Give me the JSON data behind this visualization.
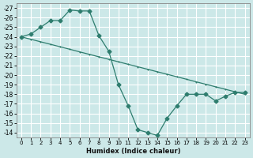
{
  "xlabel": "Humidex (Indice chaleur)",
  "bg_color": "#cce8e8",
  "grid_color": "#ffffff",
  "line_color": "#2e7d6e",
  "xlim": [
    -0.5,
    23.5
  ],
  "ylim": [
    -27.5,
    -13.5
  ],
  "xticks": [
    0,
    1,
    2,
    3,
    4,
    5,
    6,
    7,
    8,
    9,
    10,
    11,
    12,
    13,
    14,
    15,
    16,
    17,
    18,
    19,
    20,
    21,
    22,
    23
  ],
  "yticks": [
    -14,
    -15,
    -16,
    -17,
    -18,
    -19,
    -20,
    -21,
    -22,
    -23,
    -24,
    -25,
    -26,
    -27
  ],
  "curve1_x": [
    0,
    1,
    2,
    3,
    4,
    5,
    6,
    7,
    8,
    9,
    10,
    11,
    12,
    13,
    14,
    15,
    16,
    17,
    18,
    19,
    20,
    21,
    22,
    23
  ],
  "curve1_y": [
    -24.0,
    -24.3,
    -25.0,
    -25.7,
    -25.7,
    -26.8,
    -26.7,
    -26.7,
    -24.1,
    -22.5,
    -19.0,
    -16.8,
    -14.3,
    -14.0,
    -13.7,
    -15.5,
    -16.8,
    -18.0,
    -18.0,
    -18.0,
    -17.3,
    -17.8,
    -18.2,
    -18.2
  ],
  "curve2_x": [
    0,
    1,
    2,
    3,
    4,
    5,
    6,
    7,
    8,
    9,
    10,
    11,
    12,
    13,
    14,
    15,
    16,
    17,
    18,
    19,
    20,
    21,
    22,
    23
  ],
  "curve2_y": [
    -24.0,
    -23.74,
    -23.48,
    -23.22,
    -22.96,
    -22.7,
    -22.43,
    -22.17,
    -21.91,
    -21.65,
    -21.39,
    -21.13,
    -20.87,
    -20.61,
    -20.35,
    -20.09,
    -19.83,
    -19.57,
    -19.3,
    -19.04,
    -18.78,
    -18.52,
    -18.26,
    -18.0
  ]
}
